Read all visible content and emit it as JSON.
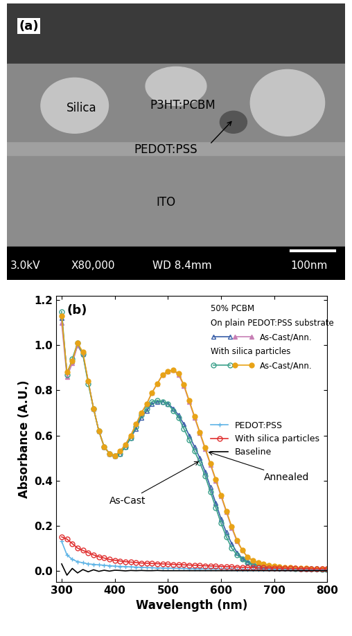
{
  "sem_image": {
    "panel_label": "(a)",
    "labels": [
      "Silica",
      "P3HT:PCBM",
      "PEDOT:PSS",
      "ITO"
    ],
    "info_bar": [
      "3.0kV",
      "X80,000",
      "WD 8.4mm",
      "100nm"
    ]
  },
  "chart_data": {
    "type": "line",
    "panel_label": "(b)",
    "xlabel": "Wavelength (nm)",
    "ylabel": "Absorbance (A.U.)",
    "xlim": [
      290,
      800
    ],
    "ylim": [
      -0.05,
      1.22
    ],
    "xticks": [
      300,
      400,
      500,
      600,
      700,
      800
    ],
    "yticks": [
      0.0,
      0.2,
      0.4,
      0.6,
      0.8,
      1.0,
      1.2
    ],
    "legend": "center right",
    "x": [
      300,
      310,
      320,
      330,
      340,
      350,
      360,
      370,
      380,
      390,
      400,
      410,
      420,
      430,
      440,
      450,
      460,
      470,
      480,
      490,
      500,
      510,
      520,
      530,
      540,
      550,
      560,
      570,
      580,
      590,
      600,
      610,
      620,
      630,
      640,
      650,
      660,
      670,
      680,
      690,
      700,
      710,
      720,
      730,
      740,
      750,
      760,
      770,
      780,
      790,
      800
    ],
    "key": [
      {
        "text": "50% PCBM"
      },
      {
        "text": "On plain PEDOT:PSS substrate"
      },
      {
        "text": "As-Cast/Ann.",
        "series": [
          {
            "color": "#3a5fa8",
            "marker": "open triangle",
            "values": [
              1.12,
              0.88,
              0.93,
              1.0,
              0.96,
              0.84,
              0.72,
              0.62,
              0.55,
              0.52,
              0.51,
              0.52,
              0.55,
              0.59,
              0.63,
              0.68,
              0.71,
              0.74,
              0.75,
              0.75,
              0.74,
              0.72,
              0.69,
              0.65,
              0.6,
              0.55,
              0.5,
              0.44,
              0.37,
              0.3,
              0.23,
              0.17,
              0.12,
              0.08,
              0.055,
              0.04,
              0.03,
              0.025,
              0.02,
              0.018,
              0.015,
              0.013,
              0.012,
              0.011,
              0.01,
              0.009,
              0.008,
              0.008,
              0.007,
              0.007,
              0.006
            ]
          },
          {
            "color": "#c77fb5",
            "marker": "triangle",
            "values": [
              1.1,
              0.86,
              0.92,
              1.0,
              0.96,
              0.84,
              0.72,
              0.62,
              0.55,
              0.52,
              0.51,
              0.53,
              0.56,
              0.6,
              0.65,
              0.7,
              0.74,
              0.79,
              0.83,
              0.87,
              0.885,
              0.89,
              0.87,
              0.82,
              0.75,
              0.68,
              0.61,
              0.54,
              0.47,
              0.4,
              0.33,
              0.26,
              0.19,
              0.13,
              0.09,
              0.06,
              0.045,
              0.035,
              0.03,
              0.025,
              0.02,
              0.018,
              0.016,
              0.014,
              0.012,
              0.011,
              0.01,
              0.009,
              0.008,
              0.008,
              0.007
            ]
          }
        ]
      },
      {
        "text": "With silica particles"
      },
      {
        "text": "As-Cast/Ann.",
        "series": [
          {
            "color": "#3aa08a",
            "marker": "open circle",
            "values": [
              1.15,
              0.87,
              0.94,
              1.01,
              0.96,
              0.83,
              0.72,
              0.62,
              0.55,
              0.52,
              0.51,
              0.52,
              0.55,
              0.59,
              0.64,
              0.69,
              0.72,
              0.75,
              0.755,
              0.75,
              0.74,
              0.71,
              0.68,
              0.63,
              0.58,
              0.53,
              0.48,
              0.42,
              0.35,
              0.28,
              0.21,
              0.15,
              0.1,
              0.07,
              0.05,
              0.035,
              0.028,
              0.022,
              0.018,
              0.016,
              0.014,
              0.012,
              0.011,
              0.01,
              0.009,
              0.008,
              0.008,
              0.007,
              0.007,
              0.006,
              0.006
            ]
          },
          {
            "color": "#e8a317",
            "marker": "circle",
            "values": [
              1.13,
              0.88,
              0.93,
              1.01,
              0.97,
              0.84,
              0.72,
              0.62,
              0.55,
              0.52,
              0.51,
              0.53,
              0.56,
              0.6,
              0.65,
              0.7,
              0.74,
              0.79,
              0.83,
              0.87,
              0.885,
              0.89,
              0.875,
              0.825,
              0.755,
              0.685,
              0.615,
              0.545,
              0.475,
              0.405,
              0.335,
              0.265,
              0.195,
              0.135,
              0.09,
              0.06,
              0.045,
              0.035,
              0.03,
              0.025,
              0.02,
              0.018,
              0.016,
              0.014,
              0.012,
              0.011,
              0.01,
              0.009,
              0.008,
              0.008,
              0.007
            ]
          }
        ]
      }
    ],
    "series": [
      {
        "name": "PEDOT:PSS",
        "color": "#5fb4e6",
        "marker": "plus",
        "values": [
          0.13,
          0.07,
          0.05,
          0.04,
          0.035,
          0.03,
          0.028,
          0.026,
          0.024,
          0.022,
          0.02,
          0.019,
          0.018,
          0.017,
          0.016,
          0.015,
          0.014,
          0.013,
          0.012,
          0.012,
          0.011,
          0.011,
          0.01,
          0.01,
          0.009,
          0.009,
          0.009,
          0.008,
          0.008,
          0.008,
          0.007,
          0.007,
          0.007,
          0.006,
          0.006,
          0.006,
          0.006,
          0.005,
          0.005,
          0.005,
          0.005,
          0.005,
          0.004,
          0.004,
          0.004,
          0.004,
          0.004,
          0.003,
          0.003,
          0.003,
          0.003
        ]
      },
      {
        "name": "With silica particles",
        "color": "#e03030",
        "marker": "open circle",
        "values": [
          0.15,
          0.14,
          0.12,
          0.1,
          0.09,
          0.08,
          0.07,
          0.062,
          0.056,
          0.05,
          0.046,
          0.043,
          0.04,
          0.038,
          0.036,
          0.034,
          0.033,
          0.032,
          0.031,
          0.03,
          0.029,
          0.028,
          0.027,
          0.026,
          0.025,
          0.024,
          0.023,
          0.022,
          0.021,
          0.02,
          0.019,
          0.018,
          0.017,
          0.016,
          0.015,
          0.015,
          0.014,
          0.013,
          0.013,
          0.012,
          0.012,
          0.011,
          0.011,
          0.01,
          0.01,
          0.009,
          0.009,
          0.008,
          0.008,
          0.008,
          0.007
        ]
      },
      {
        "name": "Baseline",
        "color": "#000000",
        "marker": "none",
        "values": [
          0.03,
          -0.02,
          0.01,
          -0.01,
          0.005,
          -0.005,
          0.004,
          -0.003,
          0.002,
          -0.002,
          0.002,
          0.001,
          -0.001,
          0.001,
          0.0,
          0.001,
          0.0,
          0.0,
          0.001,
          0.0,
          0.0,
          0.0,
          0.0,
          0.0,
          0.0,
          0.0,
          0.0,
          0.0,
          0.0,
          0.0,
          0.0,
          0.0,
          0.0,
          0.0,
          0.0,
          0.0,
          0.0,
          0.0,
          0.0,
          0.0,
          0.0,
          0.0,
          0.0,
          0.0,
          0.0,
          0.0,
          0.0,
          0.0,
          0.0,
          0.0,
          0.0
        ]
      }
    ],
    "annotations": [
      {
        "text": "As-Cast",
        "point": [
          562,
          0.49
        ]
      },
      {
        "text": "Annealed",
        "point": [
          572,
          0.53
        ]
      }
    ]
  }
}
